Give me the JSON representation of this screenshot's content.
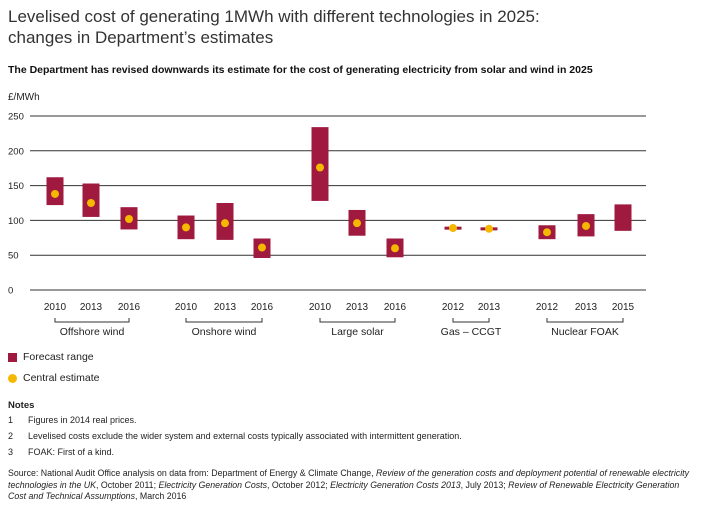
{
  "title_line1": "Levelised cost of generating 1MWh with different technologies in 2025:",
  "title_line2": "changes in Department’s estimates",
  "subtitle": "The Department has revised downwards its estimate for the cost of generating electricity from solar and wind in 2025",
  "colors": {
    "range": "#a0193f",
    "central": "#f5b800",
    "grid": "#333333"
  },
  "chart_data": {
    "type": "range",
    "ylabel": "£/MWh",
    "ylim": [
      0,
      250
    ],
    "yticks": [
      0,
      50,
      100,
      150,
      200,
      250
    ],
    "grid": true,
    "groups": [
      {
        "name": "Offshore wind",
        "points": [
          {
            "x": "2010",
            "low": 122,
            "high": 162,
            "central": 138
          },
          {
            "x": "2013",
            "low": 105,
            "high": 153,
            "central": 125
          },
          {
            "x": "2016",
            "low": 87,
            "high": 119,
            "central": 102
          }
        ]
      },
      {
        "name": "Onshore wind",
        "points": [
          {
            "x": "2010",
            "low": 73,
            "high": 107,
            "central": 90
          },
          {
            "x": "2013",
            "low": 72,
            "high": 125,
            "central": 96
          },
          {
            "x": "2016",
            "low": 46,
            "high": 74,
            "central": 61
          }
        ]
      },
      {
        "name": "Large solar",
        "points": [
          {
            "x": "2010",
            "low": 128,
            "high": 234,
            "central": 176
          },
          {
            "x": "2013",
            "low": 78,
            "high": 115,
            "central": 96
          },
          {
            "x": "2016",
            "low": 47,
            "high": 74,
            "central": 60
          }
        ]
      },
      {
        "name": "Gas – CCGT",
        "points": [
          {
            "x": "2012",
            "low": 87,
            "high": 91,
            "central": 89
          },
          {
            "x": "2013",
            "low": 86,
            "high": 90,
            "central": 88
          }
        ]
      },
      {
        "name": "Nuclear FOAK",
        "points": [
          {
            "x": "2012",
            "low": 73,
            "high": 93,
            "central": 83
          },
          {
            "x": "2013",
            "low": 77,
            "high": 109,
            "central": 92
          },
          {
            "x": "2015",
            "low": 85,
            "high": 123,
            "central": null
          }
        ]
      }
    ]
  },
  "legend": {
    "range_label": "Forecast range",
    "central_label": "Central estimate"
  },
  "notes": {
    "title": "Notes",
    "items": [
      {
        "num": "1",
        "text": "Figures in 2014 real prices."
      },
      {
        "num": "2",
        "text": "Levelised costs exclude the wider system and external costs typically associated with intermittent generation."
      },
      {
        "num": "3",
        "text": "FOAK: First of a kind."
      }
    ]
  },
  "source": {
    "p1": "Source: National Audit Office analysis on data from: Department of Energy & Climate Change, ",
    "i1": "Review of the generation costs and deployment potential of renewable electricity technologies in the UK",
    "p2": ", October 2011; ",
    "i2": "Electricity Generation Costs",
    "p3": ", October 2012; ",
    "i3": "Electricity Generation Costs 2013",
    "p4": ", July 2013; ",
    "i4": "Review of Renewable Electricity Generation Cost and Technical Assumptions",
    "p5": ", March 2016"
  }
}
